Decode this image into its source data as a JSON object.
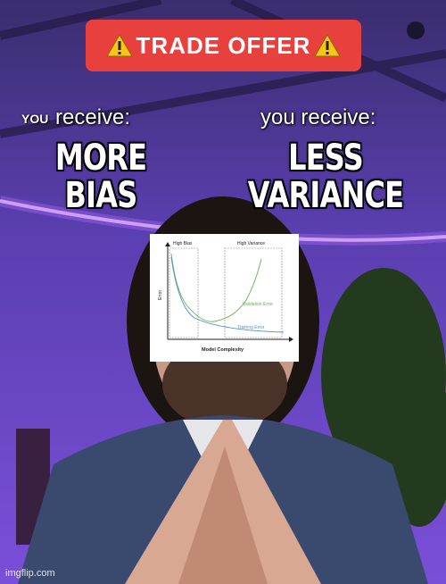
{
  "banner": {
    "text": "TRADE OFFER"
  },
  "left_offer": {
    "you_label": "YOU",
    "receive": "receive:",
    "line1": "MORE",
    "line2": "BIAS"
  },
  "right_offer": {
    "receive": "you receive:",
    "line1": "LESS",
    "line2": "VARIANCE"
  },
  "chart_data": {
    "type": "line",
    "xlabel": "Model Complexity",
    "ylabel": "Error",
    "regions": [
      "High Bias",
      "High Variance"
    ],
    "series": [
      {
        "name": "Validation Error",
        "color": "#6ab04c"
      },
      {
        "name": "Training Error",
        "color": "#4a90d9"
      }
    ]
  },
  "watermark": "imgflip.com"
}
